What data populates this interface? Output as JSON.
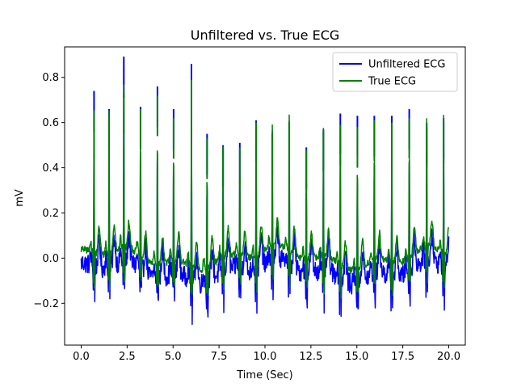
{
  "chart_data": {
    "type": "line",
    "title": "Unfiltered vs. True ECG",
    "xlabel": "Time (Sec)",
    "ylabel": "mV",
    "xlim": [
      -0.9,
      20.9
    ],
    "ylim": [
      -0.385,
      0.935
    ],
    "x_ticks": [
      0.0,
      2.5,
      5.0,
      7.5,
      10.0,
      12.5,
      15.0,
      17.5,
      20.0
    ],
    "x_tick_labels": [
      "0.0",
      "2.5",
      "5.0",
      "7.5",
      "10.0",
      "12.5",
      "15.0",
      "17.5",
      "20.0"
    ],
    "y_ticks": [
      -0.2,
      0.0,
      0.2,
      0.4,
      0.6,
      0.8
    ],
    "y_tick_labels": [
      "−0.2",
      "0.0",
      "0.2",
      "0.4",
      "0.6",
      "0.8"
    ],
    "grid": false,
    "legend_position": "upper right",
    "sample_step": 0.02,
    "beats": [
      {
        "t": 0.7,
        "u": 0.74,
        "tr": 0.62
      },
      {
        "t": 1.52,
        "u": 0.66,
        "tr": 0.63
      },
      {
        "t": 2.32,
        "u": 0.89,
        "tr": 0.73
      },
      {
        "t": 3.23,
        "u": 0.67,
        "tr": 0.66
      },
      {
        "t": 4.15,
        "u": 0.76,
        "tr": 0.72
      },
      {
        "t": 5.03,
        "u": 0.66,
        "tr": 0.62
      },
      {
        "t": 6.0,
        "u": 0.86,
        "tr": 0.79
      },
      {
        "t": 6.85,
        "u": 0.55,
        "tr": 0.53
      },
      {
        "t": 7.72,
        "u": 0.5,
        "tr": 0.49
      },
      {
        "t": 8.63,
        "u": 0.51,
        "tr": 0.49
      },
      {
        "t": 9.52,
        "u": 0.61,
        "tr": 0.6
      },
      {
        "t": 10.4,
        "u": 0.55,
        "tr": 0.53
      },
      {
        "t": 11.32,
        "u": 0.6,
        "tr": 0.6
      },
      {
        "t": 12.25,
        "u": 0.49,
        "tr": 0.48
      },
      {
        "t": 13.18,
        "u": 0.57,
        "tr": 0.56
      },
      {
        "t": 14.1,
        "u": 0.64,
        "tr": 0.59
      },
      {
        "t": 15.03,
        "u": 0.63,
        "tr": 0.58
      },
      {
        "t": 15.95,
        "u": 0.63,
        "tr": 0.61
      },
      {
        "t": 16.9,
        "u": 0.63,
        "tr": 0.6
      },
      {
        "t": 17.85,
        "u": 0.66,
        "tr": 0.62
      },
      {
        "t": 18.8,
        "u": 0.6,
        "tr": 0.58
      },
      {
        "t": 19.72,
        "u": 0.62,
        "tr": 0.6
      }
    ],
    "series": [
      {
        "name": "Unfiltered ECG",
        "color": "#0000ff",
        "baseline_drift": -0.06,
        "noise": 0.045,
        "min": -0.33
      },
      {
        "name": "True ECG",
        "color": "#008000",
        "baseline_drift": 0.0,
        "noise": 0.015,
        "min": -0.18
      }
    ]
  }
}
